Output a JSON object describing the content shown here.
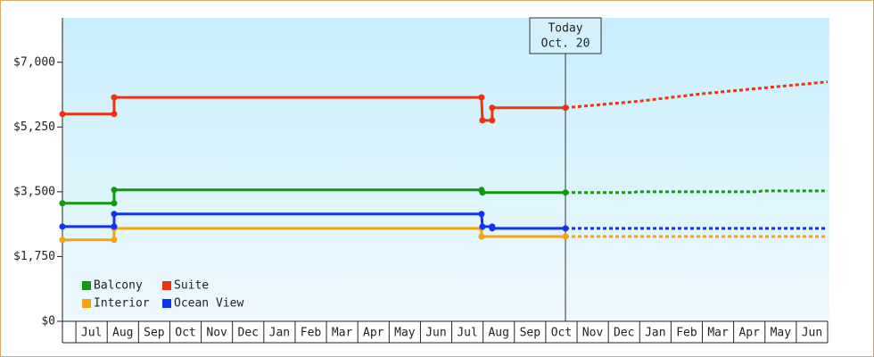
{
  "chart_data": {
    "type": "line",
    "categories": [
      "Jul",
      "Aug",
      "Sep",
      "Oct",
      "Nov",
      "Dec",
      "Jan",
      "Feb",
      "Mar",
      "Apr",
      "May",
      "Jun",
      "Jul",
      "Aug",
      "Sep",
      "Oct",
      "Nov",
      "Dec",
      "Jan",
      "Feb",
      "Mar",
      "Apr",
      "May",
      "Jun"
    ],
    "xlim": [
      -0.43,
      24
    ],
    "xticks": [
      0,
      1,
      2,
      3,
      4,
      5,
      6,
      7,
      8,
      9,
      10,
      11,
      12,
      13,
      14,
      15,
      16,
      17,
      18,
      19,
      20,
      21,
      22,
      23,
      24
    ],
    "ylim": [
      0,
      8200
    ],
    "yticks": [
      {
        "value": 0,
        "label": "$0"
      },
      {
        "value": 1750,
        "label": "$1,750"
      },
      {
        "value": 3500,
        "label": "$3,500"
      },
      {
        "value": 5250,
        "label": "$5,250"
      },
      {
        "value": 7000,
        "label": "$7,000"
      }
    ],
    "legend": "lower left",
    "annotation": {
      "x": 15.63,
      "lines": [
        "Today",
        "Oct. 20"
      ]
    },
    "series": [
      {
        "name": "Balcony",
        "color": "#119911",
        "x": [
          -0.43,
          1.22,
          1.22,
          12.95,
          12.98,
          15.63
        ],
        "values": [
          3190,
          3190,
          3550,
          3550,
          3480,
          3480
        ],
        "forecast": {
          "x": [
            15.63,
            17.8,
            17.9,
            21.8,
            21.9,
            24
          ],
          "values": [
            3480,
            3480,
            3500,
            3500,
            3525,
            3525
          ]
        }
      },
      {
        "name": "Suite",
        "color": "#ee3311",
        "x": [
          -0.43,
          1.22,
          1.22,
          12.95,
          12.98,
          13.29,
          13.29,
          15.63
        ],
        "values": [
          5600,
          5600,
          6050,
          6050,
          5430,
          5430,
          5770,
          5770
        ],
        "forecast": {
          "x": [
            15.63,
            18,
            20,
            24
          ],
          "values": [
            5770,
            5950,
            6150,
            6470
          ]
        }
      },
      {
        "name": "Interior",
        "color": "#f5a311",
        "x": [
          -0.43,
          1.22,
          1.22,
          12.95,
          12.95,
          15.63
        ],
        "values": [
          2200,
          2200,
          2510,
          2510,
          2290,
          2290
        ],
        "forecast": {
          "x": [
            15.63,
            24
          ],
          "values": [
            2290,
            2290
          ]
        }
      },
      {
        "name": "Ocean View",
        "color": "#1133ee",
        "x": [
          -0.43,
          1.22,
          1.22,
          12.95,
          12.98,
          13.29,
          13.29,
          15.63
        ],
        "values": [
          2560,
          2560,
          2900,
          2900,
          2560,
          2560,
          2510,
          2510
        ],
        "forecast": {
          "x": [
            15.63,
            24
          ],
          "values": [
            2510,
            2510
          ]
        }
      }
    ]
  }
}
